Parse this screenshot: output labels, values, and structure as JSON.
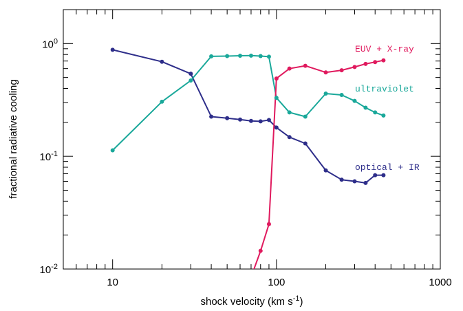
{
  "chart_data": {
    "type": "line",
    "xscale": "log",
    "yscale": "log",
    "xlim": [
      5,
      1000
    ],
    "ylim": [
      0.01,
      2
    ],
    "grid": false,
    "xlabel": "shock velocity (km s",
    "xlabel_sup": "-1",
    "xlabel_end": ")",
    "ylabel": "fractional radiative cooling",
    "xticks": [
      {
        "value": 10,
        "label": "10"
      },
      {
        "value": 100,
        "label": "100"
      },
      {
        "value": 1000,
        "label": "1000"
      }
    ],
    "yticks": [
      {
        "value": 0.01,
        "base": "10",
        "exp": "-2"
      },
      {
        "value": 0.1,
        "base": "10",
        "exp": "-1"
      },
      {
        "value": 1,
        "base": "10",
        "exp": "0"
      }
    ],
    "series": [
      {
        "name": "optical + IR",
        "color": "#2e2e8a",
        "x": [
          10,
          20,
          30,
          40,
          50,
          60,
          70,
          80,
          90,
          100,
          120,
          150,
          200,
          250,
          300,
          350,
          400,
          450
        ],
        "y": [
          0.88,
          0.69,
          0.54,
          0.225,
          0.218,
          0.212,
          0.206,
          0.204,
          0.21,
          0.18,
          0.148,
          0.13,
          0.075,
          0.062,
          0.06,
          0.058,
          0.068,
          0.068
        ]
      },
      {
        "name": "ultraviolet",
        "color": "#1aa89a",
        "x": [
          10,
          20,
          30,
          40,
          50,
          60,
          70,
          80,
          90,
          100,
          120,
          150,
          200,
          250,
          300,
          350,
          400,
          450
        ],
        "y": [
          0.113,
          0.305,
          0.47,
          0.77,
          0.775,
          0.78,
          0.782,
          0.775,
          0.765,
          0.33,
          0.245,
          0.225,
          0.36,
          0.35,
          0.31,
          0.27,
          0.245,
          0.23
        ]
      },
      {
        "name": "EUV + X-ray",
        "color": "#e01a5e",
        "x": [
          70,
          80,
          90,
          100,
          120,
          150,
          200,
          250,
          300,
          350,
          400,
          450
        ],
        "y": [
          0.0085,
          0.0145,
          0.025,
          0.49,
          0.6,
          0.635,
          0.555,
          0.58,
          0.62,
          0.66,
          0.685,
          0.71
        ]
      }
    ]
  }
}
